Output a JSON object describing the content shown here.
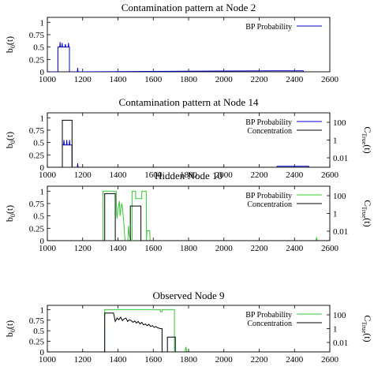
{
  "chart_data": [
    {
      "type": "line",
      "title": "Contamination pattern at Node 2",
      "ylabel_left": "b0(t)",
      "ylabel_right": "",
      "xlim": [
        1000,
        2600
      ],
      "ylim": [
        0,
        1.1
      ],
      "xticks": [
        "1000",
        "1200",
        "1400",
        "1600",
        "1800",
        "2000",
        "2200",
        "2400",
        "2600"
      ],
      "yticks": [
        "0",
        "0.25",
        "0.5",
        "0.75",
        "1"
      ],
      "right_ticks": [],
      "legend": {
        "position": "top-right",
        "entries": [
          "BP Probability"
        ]
      },
      "series": [
        {
          "name": "BP Probability",
          "color": "#0000cc",
          "axis": "left",
          "x": [
            1000,
            1060,
            1060,
            1070,
            1072,
            1074,
            1082,
            1084,
            1086,
            1100,
            1102,
            1104,
            1118,
            1120,
            1122,
            1125,
            1125,
            1170,
            1172,
            1174,
            1176,
            2260,
            2262,
            2450,
            2452
          ],
          "y": [
            0,
            0,
            0.5,
            0.5,
            0.6,
            0.5,
            0.5,
            0.58,
            0.5,
            0.5,
            0.56,
            0.5,
            0.5,
            0.58,
            0.5,
            0.5,
            0,
            0,
            0.08,
            0,
            0,
            0.02,
            0.02,
            0.02,
            0
          ]
        }
      ]
    },
    {
      "type": "line",
      "title": "Contamination pattern at Node 14",
      "ylabel_left": "b0(t)",
      "ylabel_right": "CTrue(t)",
      "xlim": [
        1000,
        2600
      ],
      "ylim": [
        0,
        1.1
      ],
      "xticks": [
        "1000",
        "1200",
        "1400",
        "1600",
        "1800",
        "2000",
        "2200",
        "2400",
        "2600"
      ],
      "yticks": [
        "0",
        "0.25",
        "0.5",
        "0.75",
        "1"
      ],
      "right_ticks": [
        "100",
        "1",
        "0.01"
      ],
      "legend": {
        "position": "top-right",
        "entries": [
          "BP Probability",
          "Concentration"
        ]
      },
      "series": [
        {
          "name": "BP Probability",
          "color": "#0000cc",
          "axis": "left",
          "x": [
            1000,
            1085,
            1085,
            1092,
            1094,
            1096,
            1108,
            1110,
            1112,
            1124,
            1126,
            1128,
            1140,
            1140,
            1170,
            1172,
            1174,
            2300,
            2302,
            2480,
            2482
          ],
          "y": [
            0,
            0,
            0.45,
            0.45,
            0.55,
            0.45,
            0.45,
            0.55,
            0.45,
            0.45,
            0.55,
            0.45,
            0.45,
            0,
            0,
            0.08,
            0,
            0,
            0.02,
            0.02,
            0
          ]
        },
        {
          "name": "Concentration",
          "color": "#000000",
          "axis": "left",
          "x": [
            1000,
            1085,
            1085,
            1140,
            1140,
            2600
          ],
          "y": [
            0,
            0,
            0.95,
            0.95,
            0,
            0
          ]
        }
      ]
    },
    {
      "type": "line",
      "title": "Hidden Node 10",
      "ylabel_left": "b0(t)",
      "ylabel_right": "CTrue(t)",
      "xlim": [
        1000,
        2600
      ],
      "ylim": [
        0,
        1.1
      ],
      "xticks": [
        "1000",
        "1200",
        "1400",
        "1600",
        "1800",
        "2000",
        "2200",
        "2400",
        "2600"
      ],
      "yticks": [
        "0",
        "0.25",
        "0.5",
        "0.75",
        "1"
      ],
      "right_ticks": [
        "100",
        "1",
        "0.01"
      ],
      "legend": {
        "position": "top-right",
        "entries": [
          "BP Probability",
          "Concentration"
        ]
      },
      "series": [
        {
          "name": "BP Probability",
          "color": "#33cc33",
          "axis": "left",
          "x": [
            1000,
            1315,
            1315,
            1390,
            1392,
            1395,
            1400,
            1408,
            1412,
            1420,
            1425,
            1432,
            1436,
            1440,
            1440,
            1456,
            1460,
            1462,
            1465,
            1470,
            1475,
            1480,
            1480,
            1500,
            1500,
            1535,
            1535,
            1560,
            1562,
            1564,
            1580,
            1582,
            1584,
            2520,
            2525,
            2530
          ],
          "y": [
            0,
            0,
            1.0,
            1.0,
            0.55,
            0.45,
            0.65,
            0.8,
            0.5,
            0.75,
            0.7,
            0.4,
            0.2,
            0,
            0,
            0,
            0.3,
            0.2,
            0.1,
            0.05,
            0,
            0,
            1.0,
            1.0,
            0.85,
            0.85,
            1.0,
            1.0,
            0,
            0.2,
            0.2,
            0,
            0,
            0,
            0.06,
            0
          ]
        },
        {
          "name": "Concentration",
          "color": "#000000",
          "axis": "left",
          "x": [
            1000,
            1325,
            1325,
            1385,
            1385,
            1470,
            1470,
            1530,
            1530,
            2600
          ],
          "y": [
            0,
            0,
            0.95,
            0.95,
            0,
            0,
            0.7,
            0.7,
            0,
            0
          ]
        }
      ]
    },
    {
      "type": "line",
      "title": "Observed Node 9",
      "ylabel_left": "b0(t)",
      "ylabel_right": "CTrue(t)",
      "xlim": [
        1000,
        2600
      ],
      "ylim": [
        0,
        1.1
      ],
      "xticks": [
        "1000",
        "1200",
        "1400",
        "1600",
        "1800",
        "2000",
        "2200",
        "2400",
        "2600"
      ],
      "yticks": [
        "0",
        "0.25",
        "0.5",
        "0.75",
        "1"
      ],
      "right_ticks": [
        "100",
        "1",
        "0.01"
      ],
      "legend": {
        "position": "top-right",
        "entries": [
          "BP Probability",
          "Concentration"
        ]
      },
      "series": [
        {
          "name": "BP Probability",
          "color": "#33cc33",
          "axis": "left",
          "x": [
            1000,
            1325,
            1325,
            1640,
            1640,
            1650,
            1650,
            1720,
            1720,
            1740,
            1760,
            1780,
            1785,
            1790
          ],
          "y": [
            0,
            0,
            1.0,
            1.0,
            0.95,
            0.95,
            1.0,
            1.0,
            0,
            0,
            0,
            0,
            0.12,
            0
          ]
        },
        {
          "name": "Concentration",
          "color": "#000000",
          "axis": "left",
          "x": [
            1000,
            1325,
            1325,
            1375,
            1385,
            1395,
            1405,
            1415,
            1425,
            1435,
            1445,
            1455,
            1465,
            1475,
            1485,
            1495,
            1505,
            1515,
            1525,
            1535,
            1545,
            1555,
            1565,
            1575,
            1585,
            1595,
            1605,
            1615,
            1625,
            1640,
            1650,
            1650,
            1680,
            1680,
            1725,
            1725,
            2600
          ],
          "y": [
            0,
            0,
            0.92,
            0.92,
            0.72,
            0.8,
            0.76,
            0.82,
            0.74,
            0.78,
            0.8,
            0.72,
            0.76,
            0.74,
            0.7,
            0.73,
            0.68,
            0.72,
            0.66,
            0.7,
            0.64,
            0.66,
            0.62,
            0.65,
            0.6,
            0.62,
            0.58,
            0.6,
            0.57,
            0.55,
            0.55,
            0,
            0,
            0.35,
            0.35,
            0,
            0
          ]
        }
      ]
    }
  ]
}
